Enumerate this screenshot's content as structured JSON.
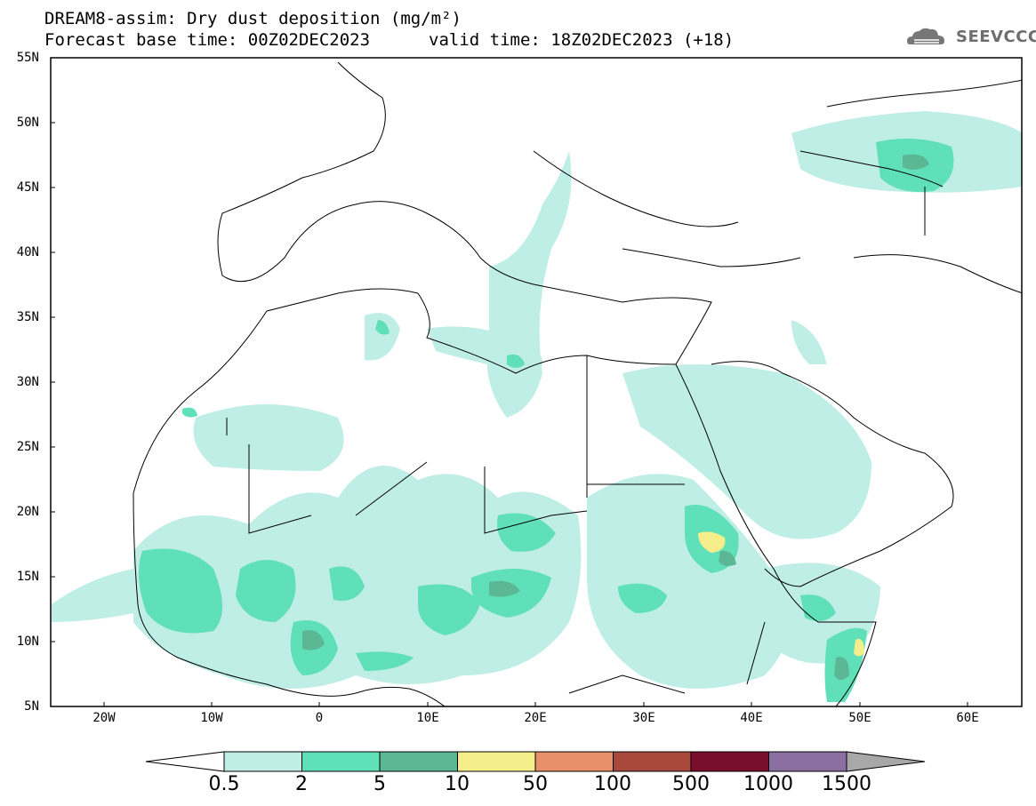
{
  "header": {
    "line1": "DREAM8-assim: Dry dust deposition (mg/m²)",
    "line2": "Forecast base time: 00Z02DEC2023",
    "line3": "valid time: 18Z02DEC2023 (+18)",
    "logo_text": "SEEVCCC",
    "logo_icon": "cloud-logo-icon"
  },
  "axes": {
    "lat_labels": [
      "55N",
      "50N",
      "45N",
      "40N",
      "35N",
      "30N",
      "25N",
      "20N",
      "15N",
      "10N",
      "5N"
    ],
    "lon_labels": [
      "20W",
      "10W",
      "0",
      "10E",
      "20E",
      "30E",
      "40E",
      "50E",
      "60E"
    ],
    "lon_range": [
      -25,
      65
    ],
    "lat_range": [
      5,
      55
    ]
  },
  "legend": {
    "labels": [
      "0.5",
      "2",
      "5",
      "10",
      "50",
      "100",
      "500",
      "1000",
      "1500"
    ],
    "colors": [
      "#ffffff",
      "#bfeee6",
      "#5fe0b8",
      "#5cb894",
      "#f5ee8a",
      "#e8906a",
      "#a8483c",
      "#7a0f2c",
      "#8b6fa3",
      "#a8a8a8"
    ]
  },
  "map_data": {
    "type": "filled-contour",
    "variable": "dry dust deposition",
    "units": "mg/m²"
  }
}
